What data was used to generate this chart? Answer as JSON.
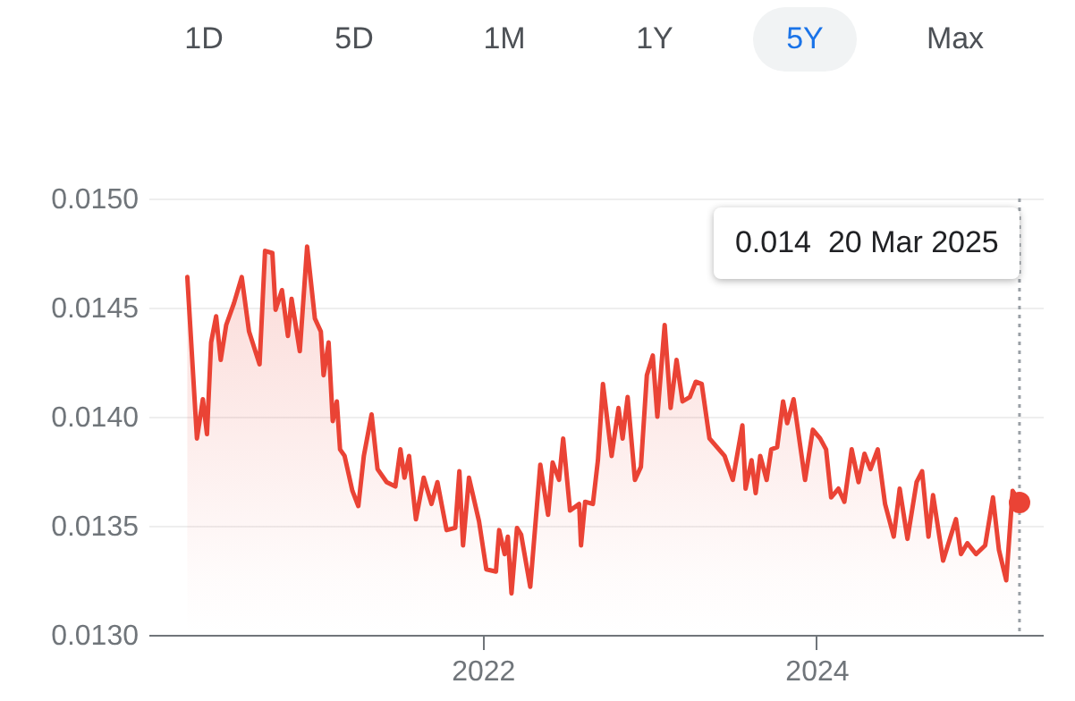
{
  "chart_data": {
    "type": "area",
    "color": "#ea4335",
    "x": [
      "2020-03-26",
      "2020-04-16",
      "2020-04-29",
      "2020-05-08",
      "2020-05-17",
      "2020-05-28",
      "2020-06-07",
      "2020-06-19",
      "2020-07-06",
      "2020-07-23",
      "2020-08-08",
      "2020-08-31",
      "2020-09-12",
      "2020-09-28",
      "2020-10-05",
      "2020-10-19",
      "2020-11-01",
      "2020-11-09",
      "2020-11-27",
      "2020-12-13",
      "2020-12-30",
      "2021-01-12",
      "2021-01-18",
      "2021-01-29",
      "2021-02-07",
      "2021-02-16",
      "2021-02-23",
      "2021-03-05",
      "2021-03-22",
      "2021-04-04",
      "2021-04-16",
      "2021-05-03",
      "2021-05-16",
      "2021-06-05",
      "2021-06-24",
      "2021-07-05",
      "2021-07-14",
      "2021-07-24",
      "2021-08-08",
      "2021-08-25",
      "2021-09-11",
      "2021-09-24",
      "2021-10-14",
      "2021-11-02",
      "2021-11-11",
      "2021-11-19",
      "2021-12-02",
      "2021-12-24",
      "2022-01-09",
      "2022-01-30",
      "2022-02-06",
      "2022-02-18",
      "2022-02-25",
      "2022-03-05",
      "2022-03-17",
      "2022-03-26",
      "2022-04-15",
      "2022-05-07",
      "2022-05-24",
      "2022-06-03",
      "2022-06-17",
      "2022-06-26",
      "2022-07-11",
      "2022-07-31",
      "2022-08-04",
      "2022-08-13",
      "2022-08-30",
      "2022-09-10",
      "2022-09-21",
      "2022-10-10",
      "2022-10-25",
      "2022-11-03",
      "2022-11-14",
      "2022-11-30",
      "2022-12-13",
      "2022-12-26",
      "2023-01-08",
      "2023-01-18",
      "2023-02-03",
      "2023-02-16",
      "2023-03-01",
      "2023-03-14",
      "2023-03-30",
      "2023-04-12",
      "2023-04-25",
      "2023-05-12",
      "2023-06-14",
      "2023-07-02",
      "2023-07-23",
      "2023-07-30",
      "2023-08-12",
      "2023-08-21",
      "2023-08-31",
      "2023-09-14",
      "2023-09-24",
      "2023-10-07",
      "2023-10-20",
      "2023-10-29",
      "2023-11-12",
      "2023-12-07",
      "2023-12-24",
      "2024-01-09",
      "2024-01-22",
      "2024-02-02",
      "2024-02-18",
      "2024-03-02",
      "2024-03-18",
      "2024-04-02",
      "2024-04-15",
      "2024-04-28",
      "2024-05-14",
      "2024-05-30",
      "2024-06-18",
      "2024-07-01",
      "2024-07-18",
      "2024-08-07",
      "2024-08-19",
      "2024-09-02",
      "2024-09-12",
      "2024-10-04",
      "2024-11-01",
      "2024-11-12",
      "2024-11-26",
      "2024-12-15",
      "2025-01-04",
      "2025-01-21",
      "2025-02-03",
      "2025-02-19",
      "2025-03-05",
      "2025-03-20"
    ],
    "values": [
      0.01464,
      0.0139,
      0.01408,
      0.01392,
      0.01434,
      0.01446,
      0.01426,
      0.01442,
      0.01452,
      0.01464,
      0.01439,
      0.01424,
      0.01476,
      0.01475,
      0.01449,
      0.01458,
      0.01437,
      0.01454,
      0.0143,
      0.01478,
      0.01445,
      0.01439,
      0.01419,
      0.01434,
      0.01398,
      0.01407,
      0.01385,
      0.01382,
      0.01366,
      0.01359,
      0.01382,
      0.01401,
      0.01376,
      0.0137,
      0.01368,
      0.01385,
      0.01372,
      0.01382,
      0.01353,
      0.01372,
      0.0136,
      0.0137,
      0.01348,
      0.01349,
      0.01375,
      0.01341,
      0.01372,
      0.01352,
      0.0133,
      0.01329,
      0.01348,
      0.01337,
      0.01345,
      0.01319,
      0.01349,
      0.01346,
      0.01322,
      0.01378,
      0.01355,
      0.01379,
      0.01371,
      0.0139,
      0.01357,
      0.0136,
      0.01341,
      0.01361,
      0.0136,
      0.0138,
      0.01415,
      0.01382,
      0.01404,
      0.0139,
      0.01409,
      0.01371,
      0.01377,
      0.01419,
      0.01428,
      0.014,
      0.01442,
      0.01404,
      0.01426,
      0.01407,
      0.01409,
      0.01416,
      0.01415,
      0.0139,
      0.01382,
      0.01371,
      0.01396,
      0.01367,
      0.0138,
      0.01365,
      0.01382,
      0.01371,
      0.01385,
      0.01386,
      0.01407,
      0.01397,
      0.01408,
      0.01371,
      0.01394,
      0.0139,
      0.01385,
      0.01363,
      0.01367,
      0.01361,
      0.01385,
      0.0137,
      0.01383,
      0.01376,
      0.01385,
      0.0136,
      0.01345,
      0.01367,
      0.01344,
      0.0137,
      0.01375,
      0.01345,
      0.01364,
      0.01334,
      0.01353,
      0.01337,
      0.01342,
      0.01337,
      0.01341,
      0.01363,
      0.01339,
      0.01325,
      0.01366,
      0.01361
    ],
    "xlim": [
      "2020-01-01",
      "2025-05-10"
    ],
    "xticks": [
      "2022",
      "2024"
    ],
    "ylim": [
      0.013,
      0.015
    ],
    "yticks": [
      {
        "value": 0.013,
        "label": "0.0130"
      },
      {
        "value": 0.0135,
        "label": "0.0135"
      },
      {
        "value": 0.014,
        "label": "0.0140"
      },
      {
        "value": 0.0145,
        "label": "0.0145"
      },
      {
        "value": 0.015,
        "label": "0.0150"
      }
    ],
    "grid": "y",
    "ref_lines": [
      {
        "axis": "x",
        "value": "2025-03-20",
        "color": "#9aa0a6",
        "line_style": "dotted"
      }
    ],
    "annotations": [
      "1D",
      "5D",
      "1M",
      "1Y",
      "5Y",
      "Max",
      "0.014  20 Mar 2025"
    ]
  }
}
